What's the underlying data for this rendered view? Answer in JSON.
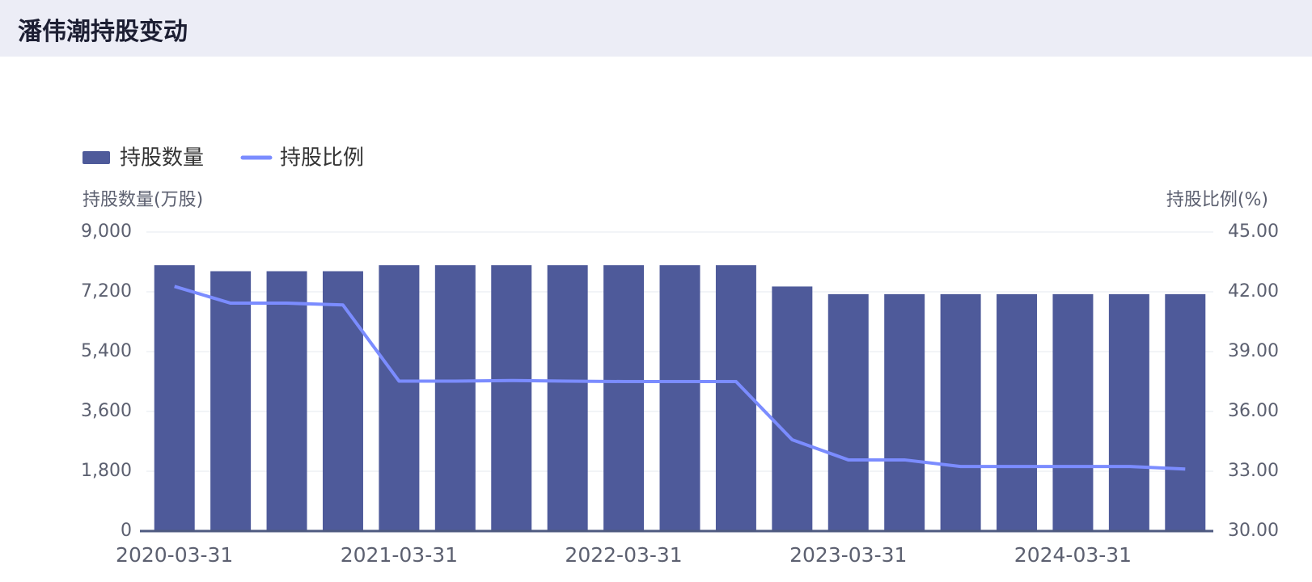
{
  "title": "潘伟潮持股变动",
  "chart_data": {
    "type": "bar_line",
    "y_label": "持股数量(万股)",
    "y2_label": "持股比例(%)",
    "categories": [
      "2020-03-31",
      null,
      null,
      null,
      "2021-03-31",
      null,
      null,
      null,
      "2022-03-31",
      null,
      null,
      null,
      "2023-03-31",
      null,
      null,
      null,
      "2024-03-31",
      null,
      null
    ],
    "series": [
      {
        "name": "持股数量",
        "type": "bar",
        "color": "#4e5a9a",
        "axis": "y",
        "values": [
          8000,
          7820,
          7820,
          7820,
          8000,
          8000,
          8000,
          8000,
          8000,
          8000,
          8000,
          7360,
          7130,
          7130,
          7130,
          7130,
          7130,
          7130,
          7130
        ]
      },
      {
        "name": "持股比例",
        "type": "line",
        "color": "#7b8cff",
        "axis": "y2",
        "values": [
          42.27,
          41.43,
          41.43,
          41.34,
          37.52,
          37.52,
          37.55,
          37.52,
          37.5,
          37.5,
          37.5,
          34.58,
          33.57,
          33.57,
          33.24,
          33.24,
          33.24,
          33.24,
          33.11
        ]
      }
    ],
    "ylim": [
      0,
      9000
    ],
    "yticks": [
      0,
      {
        "value": 1800,
        "label": "1,800"
      },
      {
        "value": 3600,
        "label": "3,600"
      },
      {
        "value": 5400,
        "label": "5,400"
      },
      {
        "value": 7200,
        "label": "7,200"
      },
      {
        "value": 9000,
        "label": "9,000"
      }
    ],
    "y2lim": [
      30,
      45
    ],
    "y2ticks": [
      {
        "value": 30,
        "label": "30.00"
      },
      {
        "value": 33,
        "label": "33.00"
      },
      {
        "value": 36,
        "label": "36.00"
      },
      {
        "value": 39,
        "label": "39.00"
      },
      {
        "value": 42,
        "label": "42.00"
      },
      {
        "value": 45,
        "label": "45.00"
      }
    ],
    "grid": true
  }
}
